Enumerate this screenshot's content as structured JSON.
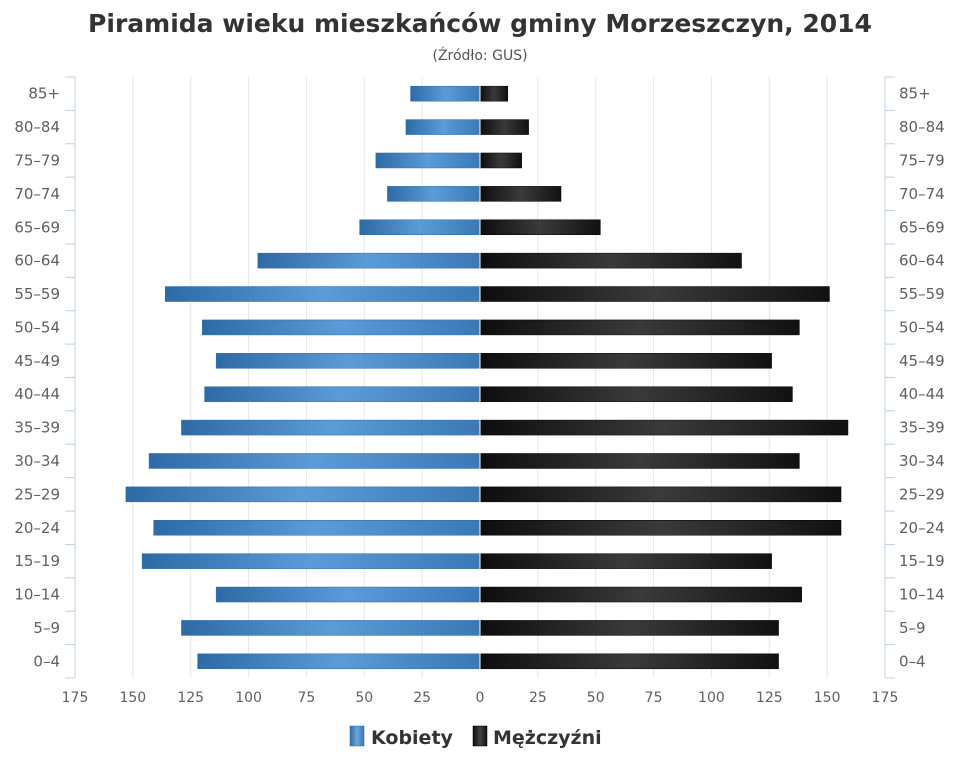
{
  "chart_data": {
    "type": "bar",
    "orientation": "horizontal",
    "layout": "population-pyramid",
    "title": "Piramida wieku mieszkańców gminy Morzeszczyn, 2014",
    "subtitle": "(Źródło: GUS)",
    "categories": [
      "85+",
      "80-84",
      "75-79",
      "70-74",
      "65-69",
      "60-64",
      "55-59",
      "50-54",
      "45-49",
      "40-44",
      "35-39",
      "30-34",
      "25-29",
      "20-24",
      "15-19",
      "10-14",
      "5-9",
      "0-4"
    ],
    "category_labels": [
      "85+",
      "80–84",
      "75–79",
      "70–74",
      "65–69",
      "60–64",
      "55–59",
      "50–54",
      "45–49",
      "40–44",
      "35–39",
      "30–34",
      "25–29",
      "20–24",
      "15–19",
      "10–14",
      "5–9",
      "0–4"
    ],
    "series": [
      {
        "name": "Kobiety",
        "color": "#3a78b6",
        "side": "left",
        "values": [
          30,
          32,
          45,
          40,
          52,
          96,
          136,
          120,
          114,
          119,
          129,
          143,
          153,
          141,
          146,
          114,
          129,
          122
        ]
      },
      {
        "name": "Mężczyźni",
        "color": "#1a1a1a",
        "side": "right",
        "values": [
          12,
          21,
          18,
          35,
          52,
          113,
          151,
          138,
          126,
          135,
          159,
          138,
          156,
          156,
          126,
          139,
          129,
          129
        ]
      }
    ],
    "xlim": [
      -175,
      175
    ],
    "x_ticks": [
      -175,
      -150,
      -125,
      -100,
      -75,
      -50,
      -25,
      0,
      25,
      50,
      75,
      100,
      125,
      150,
      175
    ],
    "x_tick_labels": [
      "175",
      "150",
      "125",
      "100",
      "75",
      "50",
      "25",
      "0",
      "25",
      "50",
      "75",
      "100",
      "125",
      "150",
      "175"
    ],
    "grid": true,
    "legend_position": "bottom-center"
  }
}
